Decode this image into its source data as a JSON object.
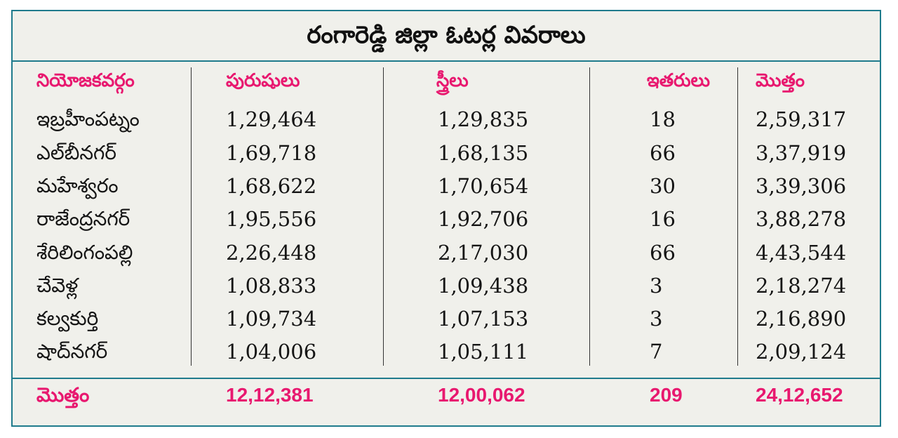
{
  "title": "రంగారెడ్డి జిల్లా ఓటర్ల వివరాలు",
  "headers": {
    "constituency": "నియోజకవర్గం",
    "men": "పురుషులు",
    "women": "స్త్రీలు",
    "others": "ఇతరులు",
    "total": "మొత్తం"
  },
  "rows": [
    {
      "name": "ఇబ్రహీంపట్నం",
      "men": "1,29,464",
      "women": "1,29,835",
      "others": "18",
      "total": "2,59,317"
    },
    {
      "name": "ఎల్‌బీనగర్",
      "men": "1,69,718",
      "women": "1,68,135",
      "others": "66",
      "total": "3,37,919"
    },
    {
      "name": "మహేశ్వరం",
      "men": "1,68,622",
      "women": "1,70,654",
      "others": "30",
      "total": "3,39,306"
    },
    {
      "name": "రాజేంద్రనగర్",
      "men": "1,95,556",
      "women": "1,92,706",
      "others": "16",
      "total": "3,88,278"
    },
    {
      "name": "శేరిలింగంపల్లి",
      "men": "2,26,448",
      "women": "2,17,030",
      "others": "66",
      "total": "4,43,544"
    },
    {
      "name": "చేవెళ్ల",
      "men": "1,08,833",
      "women": "1,09,438",
      "others": "3",
      "total": "2,18,274"
    },
    {
      "name": "కల్వకుర్తి",
      "men": "1,09,734",
      "women": "1,07,153",
      "others": "3",
      "total": "2,16,890"
    },
    {
      "name": "షాద్‌నగర్",
      "men": "1,04,006",
      "women": "1,05,111",
      "others": "7",
      "total": "2,09,124"
    }
  ],
  "totals": {
    "label": "మొత్తం",
    "men": "12,12,381",
    "women": "12,00,062",
    "others": "209",
    "total": "24,12,652"
  },
  "colors": {
    "accent": "#e8186f",
    "border": "#1f7b8c",
    "panel_bg": "#f0f0eb"
  }
}
